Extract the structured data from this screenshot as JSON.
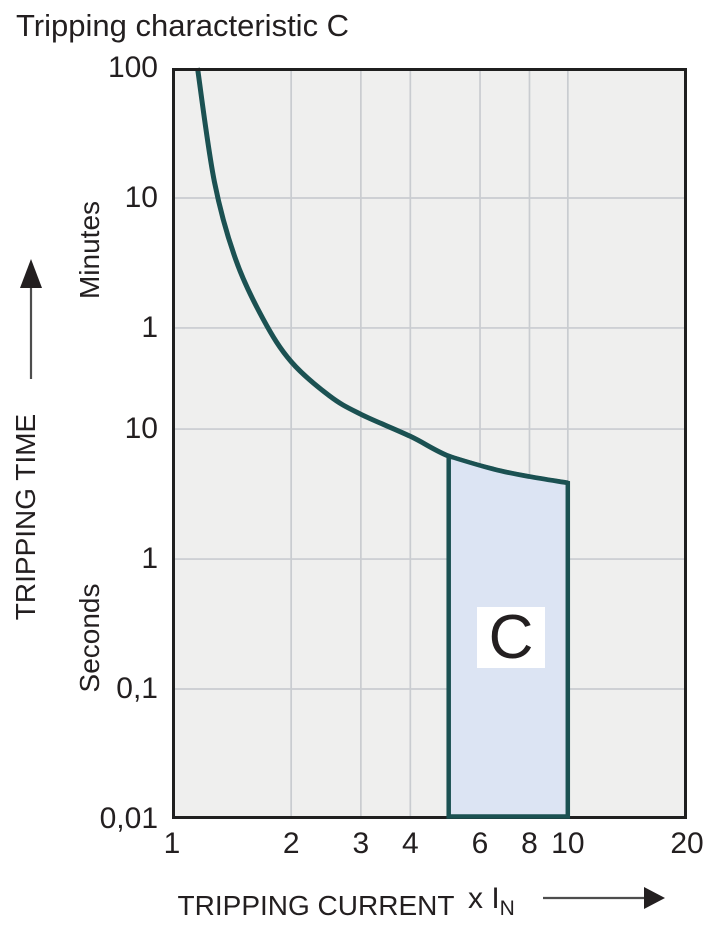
{
  "title": "Tripping characteristic C",
  "colors": {
    "curve": "#1b5152",
    "region_fill": "#dce4f3",
    "region_stroke": "#1b5152",
    "plot_background": "#efefee",
    "grid": "#c9ccd0",
    "plot_border": "#1f1f1f",
    "text": "#231f20",
    "arrow_line": "#4d4d4d",
    "arrow_head": "#231f20"
  },
  "y_axis": {
    "title": "TRIPPING TIME",
    "unit_labels": {
      "upper": "Minutes",
      "lower": "Seconds"
    },
    "ticks": [
      {
        "seconds": 6000,
        "label": "100",
        "grid": false
      },
      {
        "seconds": 600,
        "label": "10",
        "grid": true
      },
      {
        "seconds": 60,
        "label": "1",
        "grid": true
      },
      {
        "seconds": 10,
        "label": "10",
        "grid": true
      },
      {
        "seconds": 1,
        "label": "1",
        "grid": true
      },
      {
        "seconds": 0.1,
        "label": "0,1",
        "grid": true
      },
      {
        "seconds": 0.01,
        "label": "0,01",
        "grid": false
      }
    ]
  },
  "x_axis": {
    "title": "TRIPPING CURRENT",
    "factor_label": "x I",
    "factor_subscript": "N",
    "ticks": [
      {
        "multiple": 1,
        "label": "1",
        "grid": false
      },
      {
        "multiple": 2,
        "label": "2",
        "grid": true
      },
      {
        "multiple": 3,
        "label": "3",
        "grid": true
      },
      {
        "multiple": 4,
        "label": "4",
        "grid": true
      },
      {
        "multiple": 6,
        "label": "6",
        "grid": true
      },
      {
        "multiple": 8,
        "label": "8",
        "grid": true
      },
      {
        "multiple": 10,
        "label": "10",
        "grid": true
      },
      {
        "multiple": 20,
        "label": "20",
        "grid": false
      }
    ]
  },
  "chart_data": {
    "type": "line",
    "title": "Tripping characteristic C",
    "xlabel": "TRIPPING CURRENT (x IN)",
    "ylabel": "TRIPPING TIME",
    "x_scale": "log",
    "y_scale": "log",
    "x_range_multiple_of_In": [
      1,
      20
    ],
    "y_range_seconds": [
      0.01,
      6000
    ],
    "y_tick_values_seconds": [
      6000,
      600,
      60,
      10,
      1,
      0.1,
      0.01
    ],
    "x_tick_values": [
      1,
      2,
      3,
      4,
      6,
      8,
      10,
      20
    ],
    "grid": true,
    "legend": false,
    "series": [
      {
        "name": "C characteristic tripping curve",
        "points_multiple_seconds": [
          [
            1.16,
            6000
          ],
          [
            1.28,
            800
          ],
          [
            1.45,
            200
          ],
          [
            1.7,
            70
          ],
          [
            2.0,
            33
          ],
          [
            2.5,
            18
          ],
          [
            3.0,
            13
          ],
          [
            4.0,
            8.8
          ],
          [
            5.0,
            6.2
          ],
          [
            6.5,
            4.9
          ],
          [
            8.0,
            4.3
          ],
          [
            10.0,
            3.85
          ]
        ]
      }
    ],
    "region": {
      "label": "C",
      "x_range_multiple": [
        5,
        10
      ],
      "y_bottom_seconds": 0.01,
      "top_follows_curve": true,
      "label_position_multiple_seconds": [
        7.2,
        0.25
      ]
    }
  }
}
